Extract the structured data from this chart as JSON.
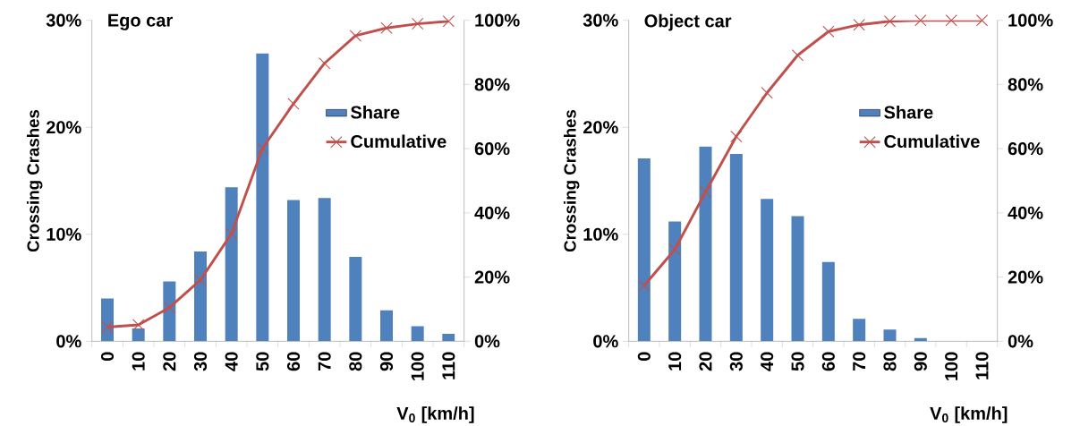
{
  "chart_data": [
    {
      "type": "bar",
      "title": "Ego car",
      "xlabel": "V$_{0}$ [km/h]",
      "ylabel": "Crossing Crashes",
      "categories": [
        "0",
        "10",
        "20",
        "30",
        "40",
        "50",
        "60",
        "70",
        "80",
        "90",
        "100",
        "110"
      ],
      "series": [
        {
          "name": "Share",
          "color": "#4f81bd",
          "values": [
            4.0,
            1.2,
            5.6,
            8.4,
            14.4,
            26.9,
            13.2,
            13.4,
            7.9,
            2.9,
            1.4,
            0.7
          ]
        },
        {
          "name": "Cumulative",
          "type": "line",
          "axis": "y2",
          "marker": "cross",
          "color": "#c0504d",
          "values": [
            4.4,
            5.1,
            10.5,
            19.1,
            33.5,
            60.1,
            74.0,
            86.6,
            95.2,
            97.6,
            98.9,
            99.7
          ]
        }
      ],
      "ylim": [
        0,
        30
      ],
      "yticks": [
        {
          "value": 0,
          "label": "0%"
        },
        {
          "value": 10,
          "label": "10%"
        },
        {
          "value": 20,
          "label": "20%"
        },
        {
          "value": 30,
          "label": "30%"
        }
      ],
      "y2lim": [
        0,
        100
      ],
      "y2ticks": [
        {
          "value": 0,
          "label": "0%"
        },
        {
          "value": 20,
          "label": "20%"
        },
        {
          "value": 40,
          "label": "40%"
        },
        {
          "value": 60,
          "label": "60%"
        },
        {
          "value": 80,
          "label": "80%"
        },
        {
          "value": 100,
          "label": "100%"
        }
      ],
      "legend": "right"
    },
    {
      "type": "bar",
      "title": "Object car",
      "xlabel": "V$_{0}$ [km/h]",
      "ylabel": "Crossing Crashes",
      "categories": [
        "0",
        "10",
        "20",
        "30",
        "40",
        "50",
        "60",
        "70",
        "80",
        "90",
        "100",
        "110"
      ],
      "series": [
        {
          "name": "Share",
          "color": "#4f81bd",
          "values": [
            17.1,
            11.2,
            18.2,
            17.5,
            13.3,
            11.7,
            7.4,
            2.1,
            1.1,
            0.3,
            0,
            0
          ]
        },
        {
          "name": "Cumulative",
          "type": "line",
          "axis": "y2",
          "marker": "cross",
          "color": "#c0504d",
          "values": [
            17.3,
            28.6,
            46.5,
            63.8,
            77.4,
            89.1,
            96.5,
            98.6,
            99.7,
            100,
            100,
            100
          ]
        }
      ],
      "ylim": [
        0,
        30
      ],
      "yticks": [
        {
          "value": 0,
          "label": "0%"
        },
        {
          "value": 10,
          "label": "10%"
        },
        {
          "value": 20,
          "label": "20%"
        },
        {
          "value": 30,
          "label": "30%"
        }
      ],
      "y2lim": [
        0,
        100
      ],
      "y2ticks": [
        {
          "value": 0,
          "label": "0%"
        },
        {
          "value": 20,
          "label": "20%"
        },
        {
          "value": 40,
          "label": "40%"
        },
        {
          "value": 60,
          "label": "60%"
        },
        {
          "value": 80,
          "label": "80%"
        },
        {
          "value": 100,
          "label": "100%"
        }
      ],
      "legend": "right"
    }
  ]
}
